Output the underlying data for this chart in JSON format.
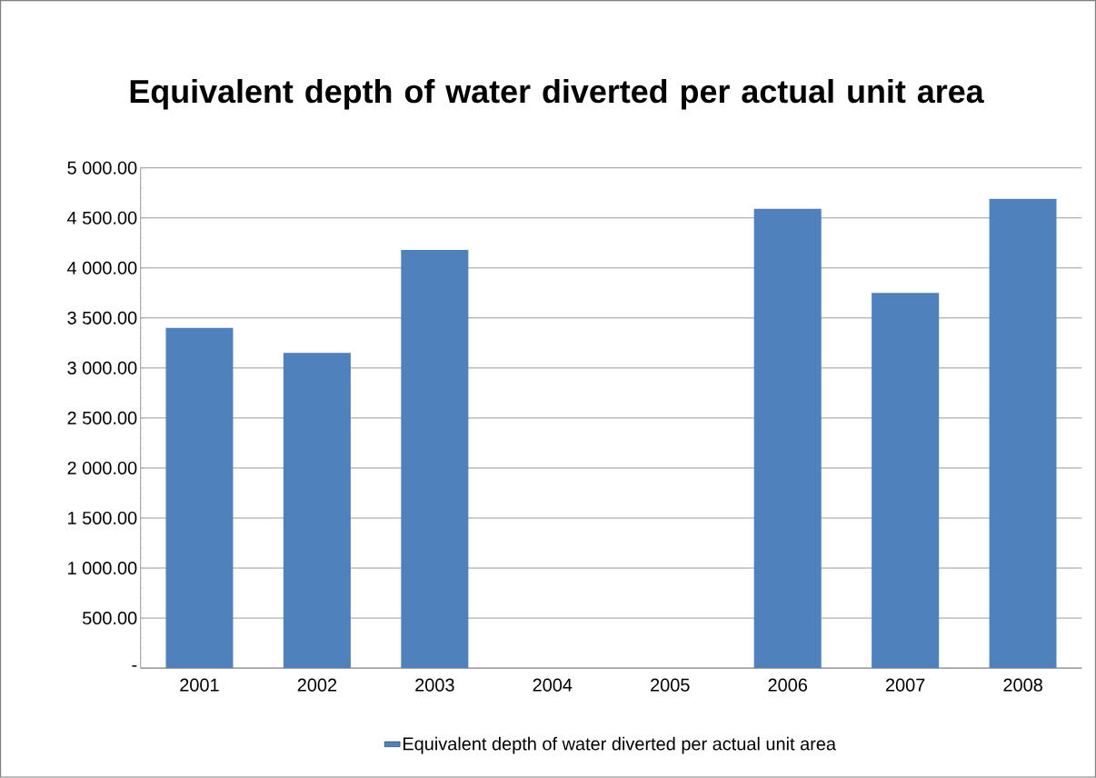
{
  "chart_data": {
    "type": "bar",
    "title": "Equivalent depth of water diverted per actual unit area",
    "categories": [
      "2001",
      "2002",
      "2003",
      "2004",
      "2005",
      "2006",
      "2007",
      "2008"
    ],
    "series": [
      {
        "name": "Equivalent depth of water diverted per actual unit area",
        "color": "#4f81bd",
        "values": [
          3400,
          3150,
          4180,
          null,
          null,
          4590,
          3750,
          4690
        ]
      }
    ],
    "ylim": [
      0,
      5000
    ],
    "yticks": [
      {
        "value": 0,
        "label": "-"
      },
      {
        "value": 500,
        "label": "500.00"
      },
      {
        "value": 1000,
        "label": "1 000.00"
      },
      {
        "value": 1500,
        "label": "1 500.00"
      },
      {
        "value": 2000,
        "label": "2 000.00"
      },
      {
        "value": 2500,
        "label": "2 500.00"
      },
      {
        "value": 3000,
        "label": "3 000.00"
      },
      {
        "value": 3500,
        "label": "3 500.00"
      },
      {
        "value": 4000,
        "label": "4 000.00"
      },
      {
        "value": 4500,
        "label": "4 500.00"
      },
      {
        "value": 5000,
        "label": "5 000.00"
      }
    ],
    "grid": "y",
    "legend": "bottom"
  }
}
